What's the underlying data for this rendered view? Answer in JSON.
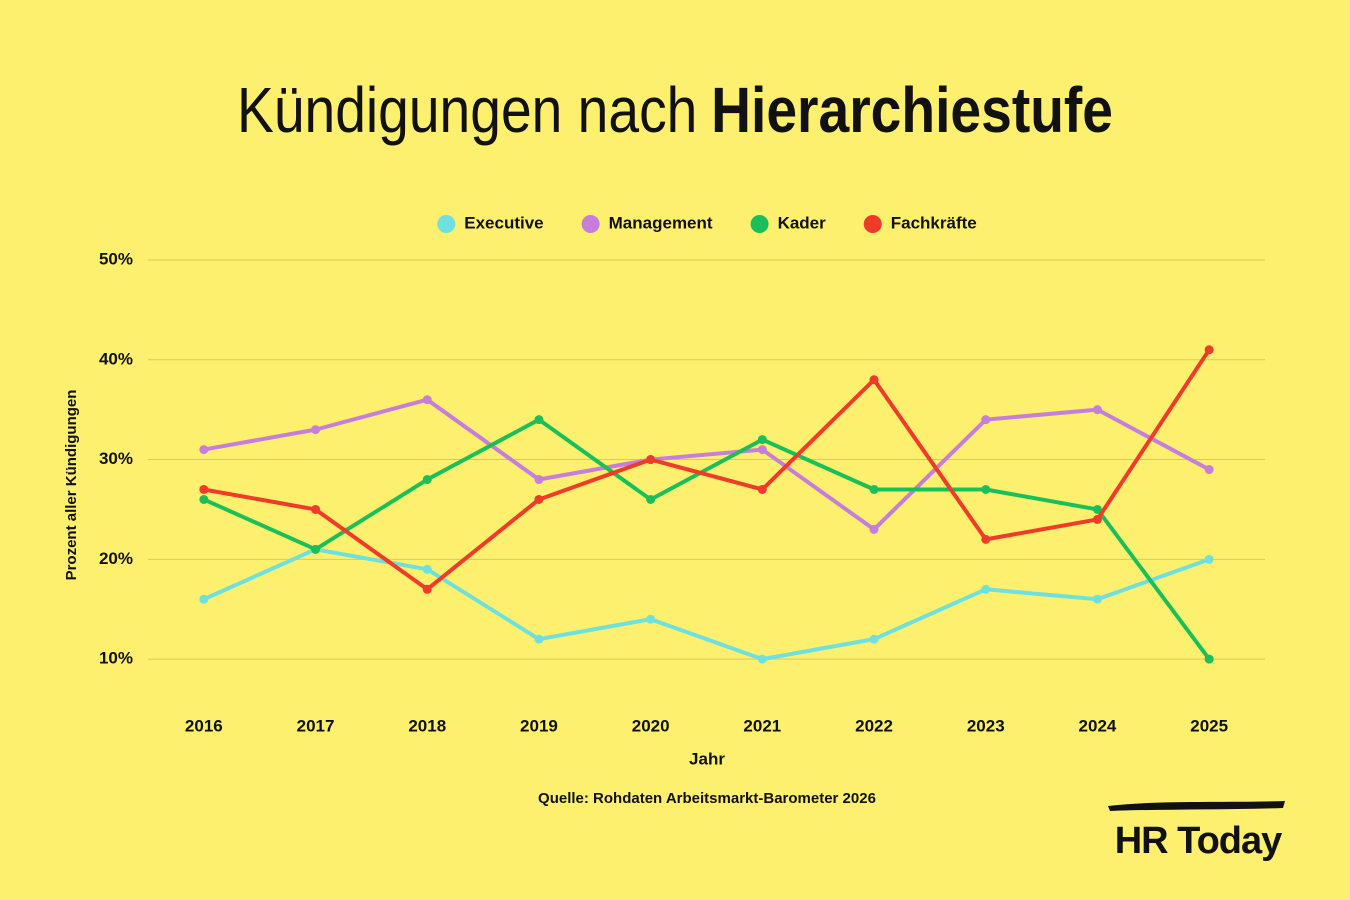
{
  "chart_data": {
    "type": "line",
    "title": [
      "Kündigungen nach",
      "Hierarchiestufe"
    ],
    "x": [
      2016,
      2017,
      2018,
      2019,
      2020,
      2021,
      2022,
      2023,
      2024,
      2025
    ],
    "xlim": [
      2015.5,
      2025.5
    ],
    "xticks": [
      2016,
      2017,
      2018,
      2019,
      2020,
      2021,
      2022,
      2023,
      2024,
      2025
    ],
    "ylim": [
      5,
      50
    ],
    "yticks": [
      {
        "value": 10,
        "label": "10%"
      },
      {
        "value": 20,
        "label": "20%"
      },
      {
        "value": 30,
        "label": "30%"
      },
      {
        "value": 40,
        "label": "40%"
      },
      {
        "value": 50,
        "label": "50%"
      }
    ],
    "xlabel": "Jahr",
    "ylabel": "Prozent aller Kündigungen",
    "grid": true,
    "legend": "top",
    "series": [
      {
        "name": "Executive",
        "color": "#6ee0e0",
        "values": [
          16,
          21,
          19,
          12,
          14,
          10,
          12,
          17,
          16,
          20
        ]
      },
      {
        "name": "Management",
        "color": "#c77ddc",
        "values": [
          31,
          33,
          36,
          28,
          30,
          31,
          23,
          34,
          35,
          29
        ]
      },
      {
        "name": "Kader",
        "color": "#1bbf5a",
        "values": [
          26,
          21,
          28,
          34,
          26,
          32,
          27,
          27,
          25,
          10
        ]
      },
      {
        "name": "Fachkräfte",
        "color": "#f03a2a",
        "values": [
          27,
          25,
          17,
          26,
          30,
          27,
          38,
          22,
          24,
          41
        ]
      }
    ],
    "source": "Quelle: Rohdaten Arbeitsmarkt-Barometer 2026",
    "logo": "HR Today"
  }
}
